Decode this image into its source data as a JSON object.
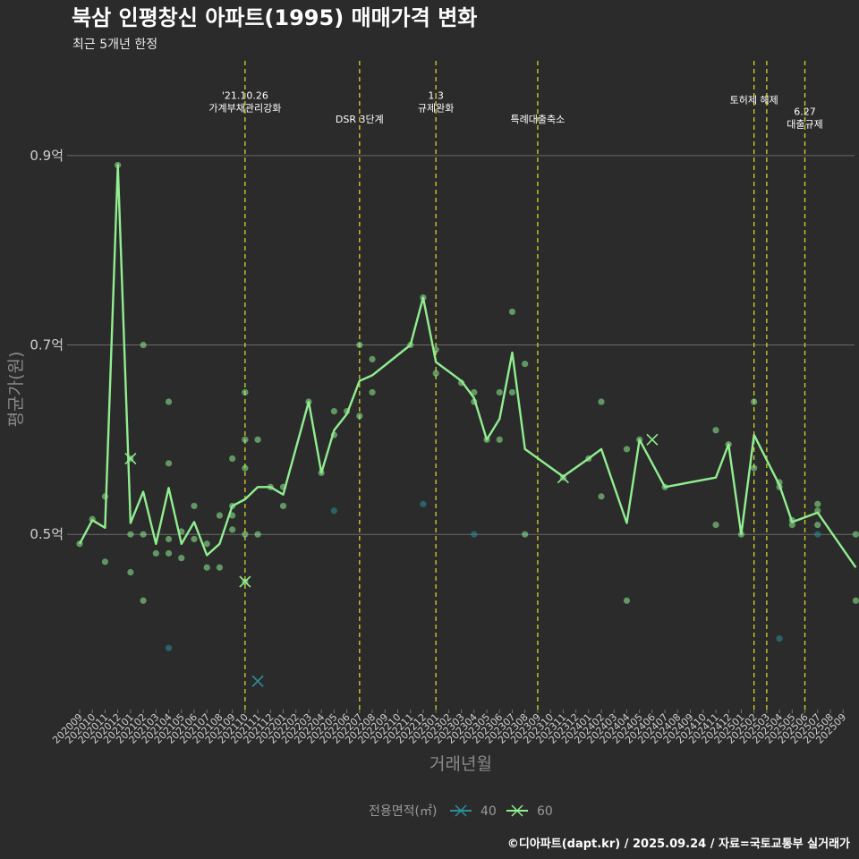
{
  "chart_data": {
    "type": "line",
    "title": "북삼 인평창신 아파트(1995) 매매가격 변화",
    "subtitle": "최근 5개년 한정",
    "xlabel": "거래년월",
    "ylabel": "평균가(원)",
    "ylim": [
      0.315,
      1.0
    ],
    "yticks": [
      {
        "value": 0.5,
        "label": "0.5억"
      },
      {
        "value": 0.7,
        "label": "0.7억"
      },
      {
        "value": 0.9,
        "label": "0.9억"
      }
    ],
    "months": [
      "202009",
      "202010",
      "202011",
      "202012",
      "202101",
      "202102",
      "202103",
      "202104",
      "202105",
      "202106",
      "202107",
      "202108",
      "202109",
      "202110",
      "202111",
      "202112",
      "202201",
      "202202",
      "202203",
      "202204",
      "202205",
      "202206",
      "202207",
      "202208",
      "202209",
      "202210",
      "202211",
      "202212",
      "202301",
      "202302",
      "202303",
      "202304",
      "202305",
      "202306",
      "202307",
      "202308",
      "202309",
      "202310",
      "202311",
      "202312",
      "202401",
      "202402",
      "202403",
      "202404",
      "202405",
      "202406",
      "202407",
      "202408",
      "202409",
      "202410",
      "202411",
      "202412",
      "202501",
      "202502",
      "202503",
      "202504",
      "202505",
      "202506",
      "202507",
      "202508",
      "202509"
    ],
    "events": [
      {
        "month_index": 13.0,
        "lines": [
          "'21.10.26",
          "가계부채관리강화"
        ],
        "label_y": 0.96
      },
      {
        "month_index": 22.0,
        "lines": [
          "DSR 3단계"
        ],
        "label_y": 0.935
      },
      {
        "month_index": 28.0,
        "lines": [
          "1.3",
          "규제완화"
        ],
        "label_y": 0.96
      },
      {
        "month_index": 36.0,
        "lines": [
          "특례대출축소"
        ],
        "label_y": 0.935
      },
      {
        "month_index": 53.0,
        "lines": [
          "토허제 해제"
        ],
        "label_y": 0.955
      },
      {
        "month_index": 54.0,
        "lines": [],
        "label_y": 0.955
      },
      {
        "month_index": 57.0,
        "lines": [
          "6.27",
          "대출규제"
        ],
        "label_y": 0.943
      }
    ],
    "series": [
      {
        "name": "60",
        "color": "#90ee90",
        "line": [
          [
            0,
            0.49
          ],
          [
            1,
            0.515
          ],
          [
            2,
            0.507
          ],
          [
            3,
            0.89
          ],
          [
            4,
            0.512
          ],
          [
            5,
            0.545
          ],
          [
            6,
            0.49
          ],
          [
            7,
            0.549
          ],
          [
            8,
            0.49
          ],
          [
            9,
            0.513
          ],
          [
            10,
            0.478
          ],
          [
            11,
            0.49
          ],
          [
            12,
            0.53
          ],
          [
            13,
            0.537
          ],
          [
            14,
            0.55
          ],
          [
            15,
            0.55
          ],
          [
            16,
            0.542
          ],
          [
            18,
            0.64
          ],
          [
            19,
            0.565
          ],
          [
            20,
            0.61
          ],
          [
            21,
            0.627
          ],
          [
            22,
            0.662
          ],
          [
            23,
            0.668
          ],
          [
            26,
            0.7
          ],
          [
            27,
            0.75
          ],
          [
            28,
            0.682
          ],
          [
            30,
            0.662
          ],
          [
            31,
            0.644
          ],
          [
            32,
            0.6
          ],
          [
            33,
            0.622
          ],
          [
            34,
            0.692
          ],
          [
            35,
            0.59
          ],
          [
            38,
            0.561
          ],
          [
            40,
            0.58
          ],
          [
            41,
            0.59
          ],
          [
            43,
            0.512
          ],
          [
            44,
            0.6
          ],
          [
            46,
            0.55
          ],
          [
            50,
            0.56
          ],
          [
            51,
            0.595
          ],
          [
            52,
            0.5
          ],
          [
            53,
            0.605
          ],
          [
            55,
            0.552
          ],
          [
            56,
            0.513
          ],
          [
            58,
            0.523
          ],
          [
            61,
            0.465
          ]
        ],
        "points": [
          [
            0,
            0.49
          ],
          [
            1,
            0.516
          ],
          [
            2,
            0.54
          ],
          [
            2,
            0.471
          ],
          [
            3,
            0.89
          ],
          [
            4,
            0.58
          ],
          [
            4,
            0.5
          ],
          [
            4,
            0.46
          ],
          [
            5,
            0.7
          ],
          [
            5,
            0.5
          ],
          [
            5,
            0.43
          ],
          [
            6,
            0.48
          ],
          [
            7,
            0.64
          ],
          [
            7,
            0.575
          ],
          [
            7,
            0.495
          ],
          [
            7,
            0.48
          ],
          [
            8,
            0.503
          ],
          [
            8,
            0.475
          ],
          [
            9,
            0.53
          ],
          [
            9,
            0.495
          ],
          [
            10,
            0.49
          ],
          [
            10,
            0.465
          ],
          [
            11,
            0.52
          ],
          [
            11,
            0.465
          ],
          [
            12,
            0.58
          ],
          [
            12,
            0.53
          ],
          [
            12,
            0.52
          ],
          [
            12,
            0.505
          ],
          [
            13,
            0.65
          ],
          [
            13,
            0.6
          ],
          [
            13,
            0.57
          ],
          [
            13,
            0.5
          ],
          [
            13,
            0.45
          ],
          [
            14,
            0.6
          ],
          [
            14,
            0.5
          ],
          [
            15,
            0.55
          ],
          [
            16,
            0.55
          ],
          [
            16,
            0.53
          ],
          [
            18,
            0.64
          ],
          [
            19,
            0.565
          ],
          [
            20,
            0.63
          ],
          [
            20,
            0.605
          ],
          [
            21,
            0.63
          ],
          [
            22,
            0.7
          ],
          [
            22,
            0.625
          ],
          [
            23,
            0.685
          ],
          [
            23,
            0.65
          ],
          [
            26,
            0.7
          ],
          [
            27,
            0.75
          ],
          [
            28,
            0.695
          ],
          [
            28,
            0.67
          ],
          [
            30,
            0.66
          ],
          [
            31,
            0.65
          ],
          [
            31,
            0.64
          ],
          [
            32,
            0.6
          ],
          [
            33,
            0.65
          ],
          [
            33,
            0.6
          ],
          [
            34,
            0.735
          ],
          [
            34,
            0.65
          ],
          [
            35,
            0.68
          ],
          [
            35,
            0.5
          ],
          [
            38,
            0.56
          ],
          [
            40,
            0.58
          ],
          [
            41,
            0.64
          ],
          [
            41,
            0.54
          ],
          [
            43,
            0.59
          ],
          [
            43,
            0.43
          ],
          [
            44,
            0.6
          ],
          [
            46,
            0.55
          ],
          [
            50,
            0.61
          ],
          [
            50,
            0.51
          ],
          [
            51,
            0.595
          ],
          [
            52,
            0.5
          ],
          [
            53,
            0.64
          ],
          [
            53,
            0.57
          ],
          [
            55,
            0.555
          ],
          [
            55,
            0.55
          ],
          [
            56,
            0.515
          ],
          [
            56,
            0.51
          ],
          [
            58,
            0.532
          ],
          [
            58,
            0.525
          ],
          [
            58,
            0.51
          ],
          [
            61,
            0.5
          ],
          [
            61,
            0.43
          ]
        ],
        "crosses": [
          [
            4,
            0.58
          ],
          [
            13,
            0.45
          ],
          [
            38,
            0.56
          ],
          [
            45,
            0.6
          ]
        ]
      },
      {
        "name": "40",
        "color": "#2a8f9a",
        "line": [],
        "points": [
          [
            7,
            0.38
          ],
          [
            20,
            0.525
          ],
          [
            27,
            0.532
          ],
          [
            31,
            0.5
          ],
          [
            55,
            0.39
          ],
          [
            58,
            0.5
          ]
        ],
        "crosses": [
          [
            14,
            0.345
          ]
        ]
      }
    ],
    "legend": {
      "title": "전용면적(㎡)",
      "items": [
        "40",
        "60"
      ]
    }
  },
  "caption": "©디아파트(dapt.kr) / 2025.09.24 / 자료=국토교통부 실거래가"
}
